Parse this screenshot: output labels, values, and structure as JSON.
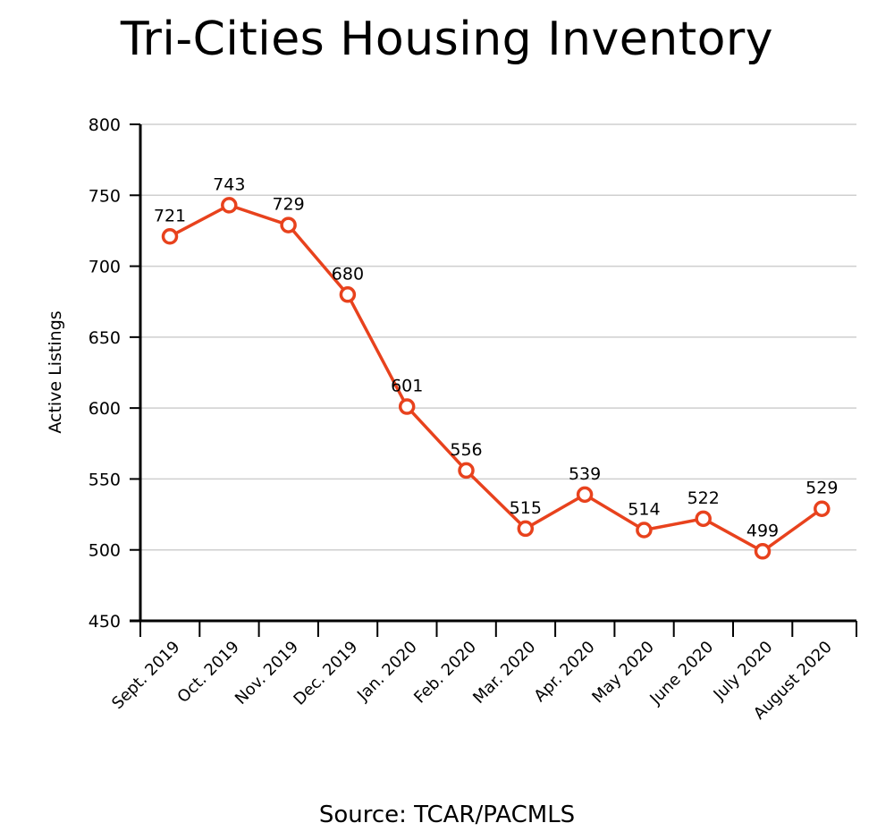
{
  "chart_data": {
    "type": "line",
    "title": "Tri-Cities Housing Inventory",
    "xlabel": "",
    "ylabel": "Active Listings",
    "source": "Source: TCAR/PACMLS",
    "categories": [
      "Sept. 2019",
      "Oct. 2019",
      "Nov. 2019",
      "Dec. 2019",
      "Jan. 2020",
      "Feb. 2020",
      "Mar. 2020",
      "Apr. 2020",
      "May 2020",
      "June 2020",
      "July 2020",
      "August 2020"
    ],
    "series": [
      {
        "values": [
          721,
          743,
          729,
          680,
          601,
          556,
          515,
          539,
          514,
          522,
          499,
          529
        ]
      }
    ],
    "ylim": [
      450,
      800
    ],
    "yticks": [
      450,
      500,
      550,
      600,
      650,
      700,
      750,
      800
    ],
    "grid": true,
    "legend": "none",
    "line_color": "#e8421d",
    "marker_fill": "#ffffff"
  }
}
